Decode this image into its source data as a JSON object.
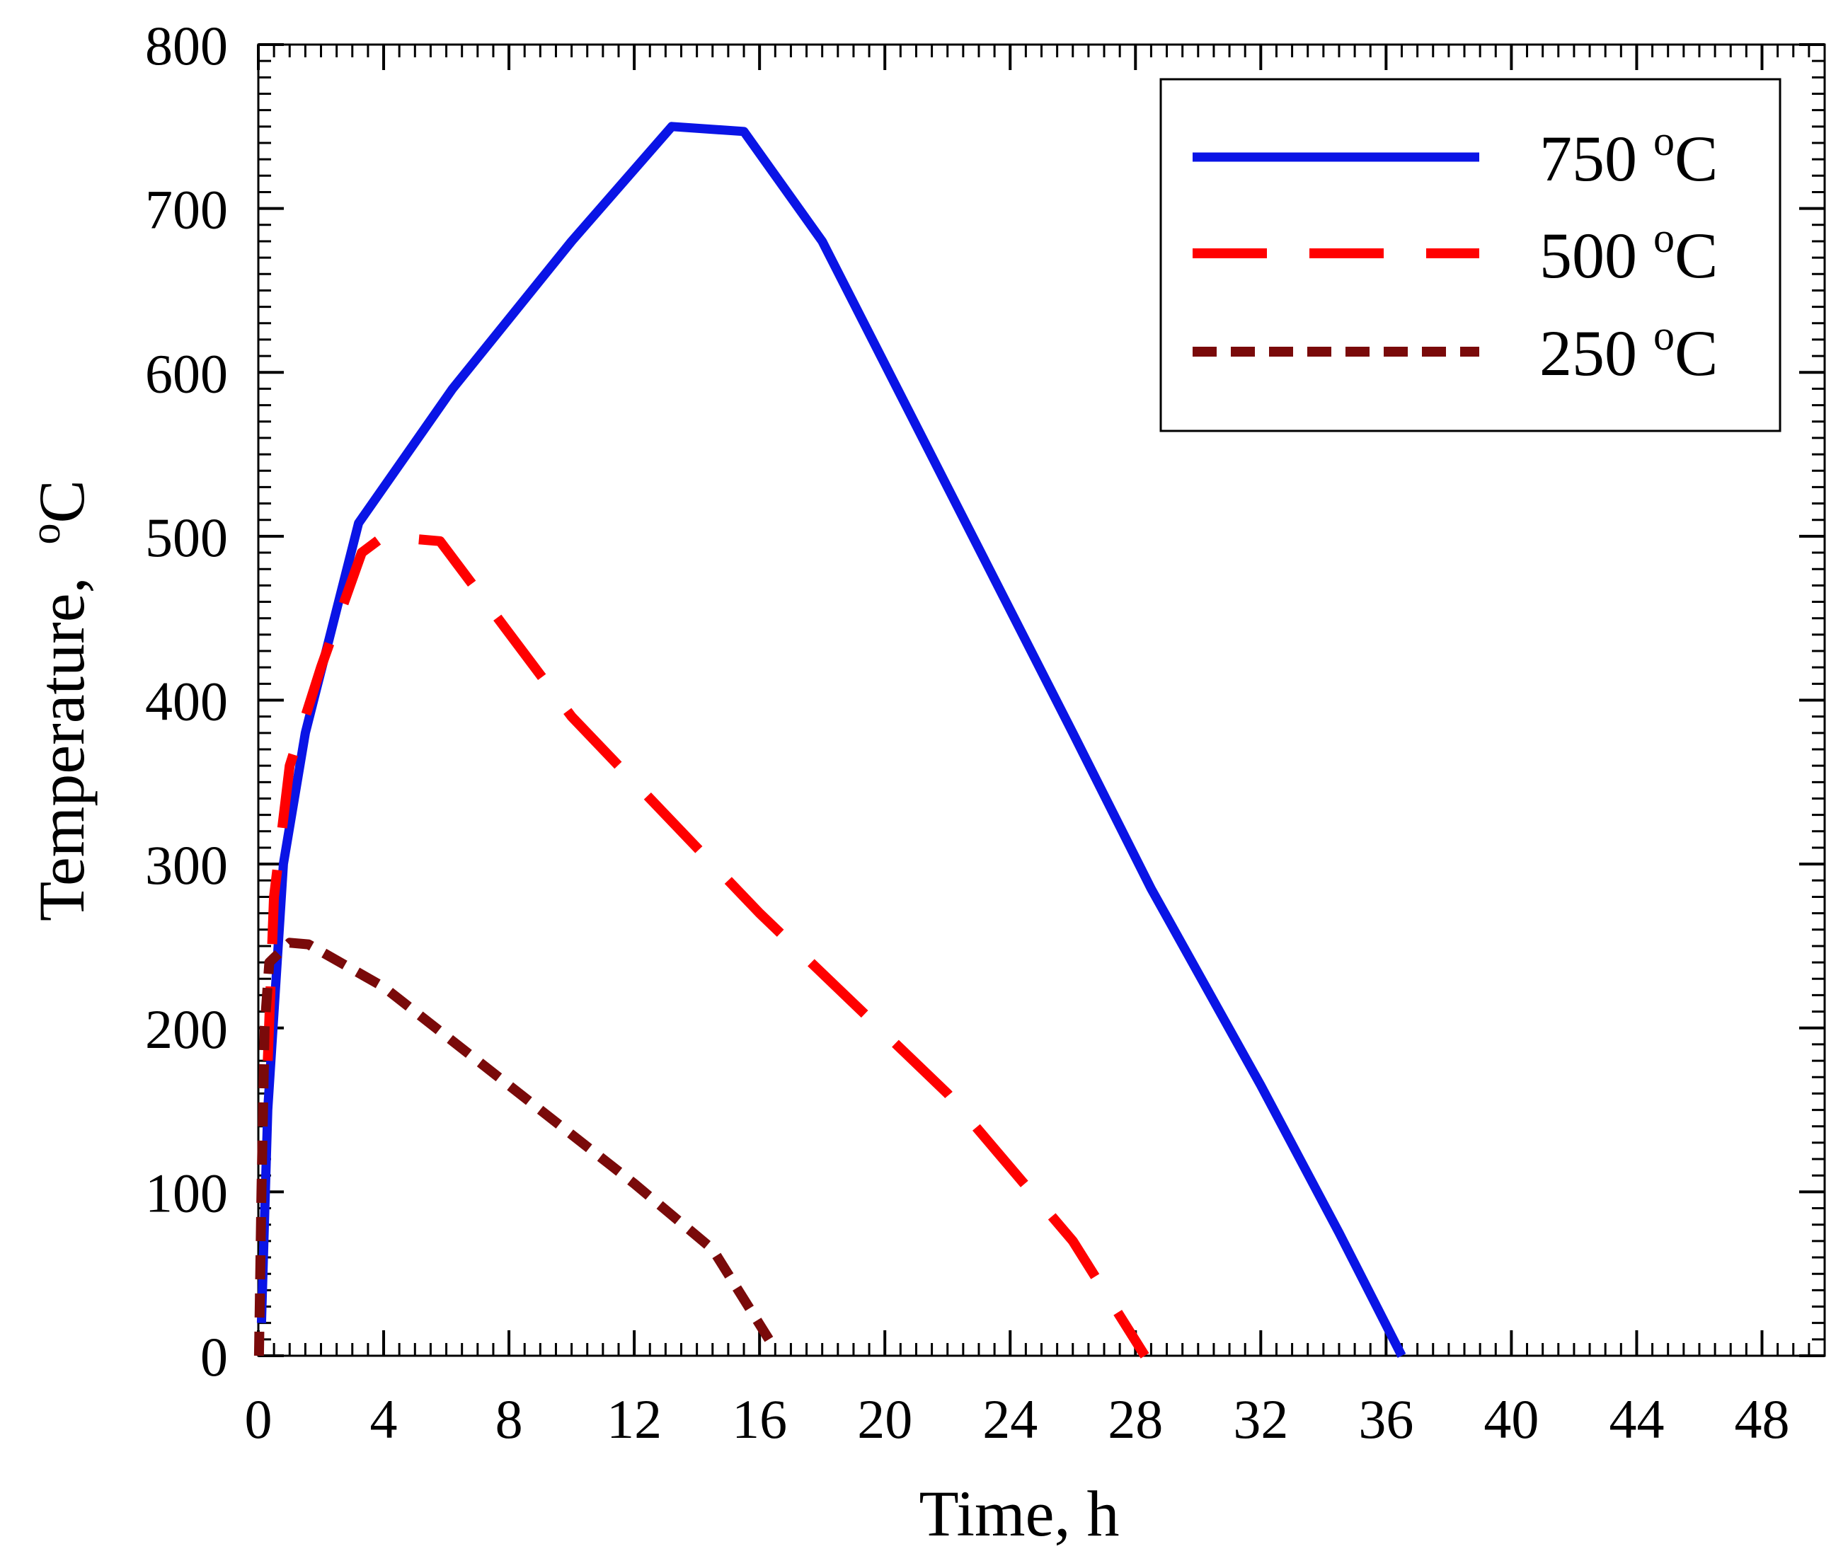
{
  "chart_data": {
    "type": "line",
    "title": "",
    "xlabel": "Time,  h",
    "ylabel_text": "Temperature,  ",
    "ylabel_unit_sup": "o",
    "ylabel_unit": "C",
    "xlim": [
      0,
      50
    ],
    "ylim": [
      0,
      800
    ],
    "xticks": [
      0,
      4,
      8,
      12,
      16,
      20,
      24,
      28,
      32,
      36,
      40,
      44,
      48
    ],
    "yticks": [
      0,
      100,
      200,
      300,
      400,
      500,
      600,
      700,
      800
    ],
    "grid": false,
    "legend_position": "top-right",
    "series": [
      {
        "name": "750 oC",
        "label_value": "750 ",
        "label_sup": "o",
        "label_unit": "C",
        "color": "#0a14e6",
        "style": "solid",
        "points": [
          [
            0.1,
            20
          ],
          [
            0.3,
            150
          ],
          [
            0.8,
            300
          ],
          [
            1.5,
            380
          ],
          [
            3.2,
            508
          ],
          [
            6.2,
            590
          ],
          [
            10,
            680
          ],
          [
            13.2,
            750
          ],
          [
            15.5,
            747
          ],
          [
            18,
            680
          ],
          [
            22,
            530
          ],
          [
            26,
            380
          ],
          [
            28.5,
            285
          ],
          [
            32,
            165
          ],
          [
            34.5,
            75
          ],
          [
            36.5,
            0
          ]
        ]
      },
      {
        "name": "500 oC",
        "label_value": "500 ",
        "label_sup": "o",
        "label_unit": "C",
        "color": "#ff0000",
        "style": "dashed",
        "points": [
          [
            0.3,
            180
          ],
          [
            0.5,
            280
          ],
          [
            1,
            360
          ],
          [
            2,
            420
          ],
          [
            3.3,
            490
          ],
          [
            4,
            500
          ],
          [
            5.8,
            497
          ],
          [
            10,
            390
          ],
          [
            16,
            270
          ],
          [
            22,
            160
          ],
          [
            26,
            70
          ],
          [
            28.3,
            0
          ]
        ]
      },
      {
        "name": "250 oC",
        "label_value": "250 ",
        "label_sup": "o",
        "label_unit": "C",
        "color": "#7a0a0a",
        "style": "dotted",
        "points": [
          [
            0.02,
            0
          ],
          [
            0.1,
            100
          ],
          [
            0.2,
            200
          ],
          [
            0.35,
            240
          ],
          [
            1,
            252
          ],
          [
            1.6,
            251
          ],
          [
            4,
            225
          ],
          [
            8,
            165
          ],
          [
            12,
            105
          ],
          [
            14.5,
            65
          ],
          [
            16.3,
            10
          ]
        ]
      }
    ]
  }
}
